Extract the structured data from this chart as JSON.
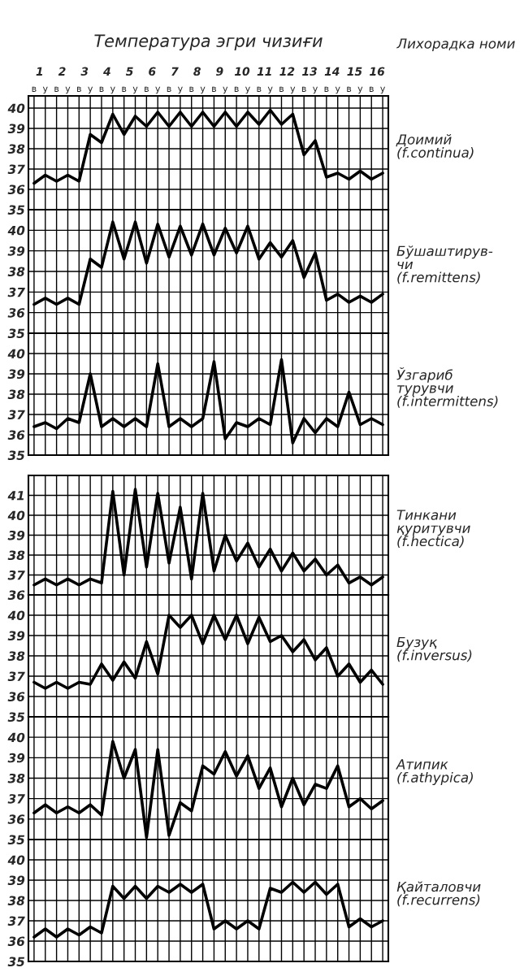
{
  "chart_data": [
    {
      "type": "line",
      "y2label": "Доимий\n(f.continua)",
      "annotations": [
        "Температура эгри чизиғи",
        "Лихорадка номи"
      ],
      "categories": [
        "в",
        "у",
        "в",
        "у",
        "в",
        "у",
        "в",
        "у",
        "в",
        "у",
        "в",
        "у",
        "в",
        "у",
        "в",
        "у",
        "в",
        "у",
        "в",
        "у",
        "в",
        "у",
        "в",
        "у",
        "в",
        "у",
        "в",
        "у",
        "в",
        "у",
        "в",
        "у"
      ],
      "x2lim": [
        0,
        16
      ],
      "x2ticks": [
        {
          "value": 0.5,
          "label": "1"
        },
        {
          "value": 1.5,
          "label": "2"
        },
        {
          "value": 2.5,
          "label": "3"
        },
        {
          "value": 3.5,
          "label": "4"
        },
        {
          "value": 4.5,
          "label": "5"
        },
        {
          "value": 5.5,
          "label": "6"
        },
        {
          "value": 6.5,
          "label": "7"
        },
        {
          "value": 7.5,
          "label": "8"
        },
        {
          "value": 8.5,
          "label": "9"
        },
        {
          "value": 9.5,
          "label": "10"
        },
        {
          "value": 10.5,
          "label": "11"
        },
        {
          "value": 11.5,
          "label": "12"
        },
        {
          "value": 12.5,
          "label": "13"
        },
        {
          "value": 13.5,
          "label": "14"
        },
        {
          "value": 14.5,
          "label": "15"
        },
        {
          "value": 15.5,
          "label": "16"
        }
      ],
      "series": [
        {
          "color": "#000000",
          "values": [
            36.3,
            36.7,
            36.4,
            36.7,
            36.4,
            38.7,
            38.3,
            39.7,
            38.7,
            39.6,
            39.1,
            39.8,
            39.1,
            39.8,
            39.1,
            39.8,
            39.1,
            39.8,
            39.1,
            39.8,
            39.2,
            39.9,
            39.2,
            39.7,
            37.7,
            38.4,
            36.6,
            36.8,
            36.5,
            36.9,
            36.5,
            36.8
          ]
        }
      ],
      "ylim": [
        35,
        40.6
      ],
      "yticks": [
        35,
        36,
        37,
        38,
        39,
        40
      ],
      "grid": true,
      "marker": "none",
      "line_style": "solid"
    },
    {
      "type": "line",
      "y2label": "Бўшаштирув-\nчи\n(f.remittens)",
      "categories": [
        null,
        null,
        null,
        null,
        null,
        null,
        null,
        null,
        null,
        null,
        null,
        null,
        null,
        null,
        null,
        null,
        null,
        null,
        null,
        null,
        null,
        null,
        null,
        null,
        null,
        null,
        null,
        null,
        null,
        null,
        null,
        null
      ],
      "series": [
        {
          "color": "#000000",
          "values": [
            36.4,
            36.7,
            36.4,
            36.7,
            36.4,
            38.6,
            38.2,
            40.4,
            38.6,
            40.4,
            38.4,
            40.3,
            38.7,
            40.2,
            38.8,
            40.3,
            38.8,
            40.1,
            38.9,
            40.2,
            38.6,
            39.4,
            38.7,
            39.5,
            37.7,
            38.9,
            36.6,
            36.9,
            36.5,
            36.8,
            36.5,
            36.9
          ]
        }
      ],
      "ylim": [
        35,
        41
      ],
      "yticks": [
        35,
        36,
        37,
        38,
        39,
        40
      ],
      "grid": true,
      "marker": "none",
      "line_style": "solid",
      "tick_labels": "y"
    },
    {
      "type": "line",
      "y2label": "Ўзгариб\nтурувчи\n(f.intermittens)",
      "categories": [
        null,
        null,
        null,
        null,
        null,
        null,
        null,
        null,
        null,
        null,
        null,
        null,
        null,
        null,
        null,
        null,
        null,
        null,
        null,
        null,
        null,
        null,
        null,
        null,
        null,
        null,
        null,
        null,
        null,
        null,
        null,
        null
      ],
      "series": [
        {
          "color": "#000000",
          "values": [
            36.4,
            36.6,
            36.3,
            36.8,
            36.6,
            39.0,
            36.4,
            36.8,
            36.4,
            36.8,
            36.4,
            39.5,
            36.4,
            36.8,
            36.4,
            36.8,
            39.6,
            35.8,
            36.6,
            36.4,
            36.8,
            36.5,
            39.7,
            35.6,
            36.8,
            36.1,
            36.8,
            36.4,
            38.1,
            36.5,
            36.8,
            36.5
          ]
        }
      ],
      "ylim": [
        35,
        41
      ],
      "yticks": [
        35,
        36,
        37,
        38,
        39,
        40
      ],
      "grid": true,
      "marker": "none",
      "line_style": "solid",
      "tick_labels": "y"
    },
    {
      "type": "line",
      "y2label": "Тинкани\nқуритувчи\n(f.hectica)",
      "categories": [
        null,
        null,
        null,
        null,
        null,
        null,
        null,
        null,
        null,
        null,
        null,
        null,
        null,
        null,
        null,
        null,
        null,
        null,
        null,
        null,
        null,
        null,
        null,
        null,
        null,
        null,
        null,
        null,
        null,
        null,
        null,
        null
      ],
      "series": [
        {
          "color": "#000000",
          "values": [
            36.5,
            36.8,
            36.5,
            36.8,
            36.5,
            36.8,
            36.6,
            41.2,
            37.0,
            41.3,
            37.4,
            41.1,
            37.6,
            40.4,
            36.8,
            41.1,
            37.2,
            39.0,
            37.7,
            38.6,
            37.4,
            38.3,
            37.2,
            38.1,
            37.2,
            37.8,
            37.0,
            37.5,
            36.6,
            36.9,
            36.5,
            36.9
          ]
        }
      ],
      "ylim": [
        36,
        42
      ],
      "yticks": [
        36,
        37,
        38,
        39,
        40,
        41
      ],
      "grid": true,
      "marker": "none",
      "line_style": "solid",
      "tick_labels": "y"
    },
    {
      "type": "line",
      "y2label": "Бузуқ\n(f.inversus)",
      "categories": [
        null,
        null,
        null,
        null,
        null,
        null,
        null,
        null,
        null,
        null,
        null,
        null,
        null,
        null,
        null,
        null,
        null,
        null,
        null,
        null,
        null,
        null,
        null,
        null,
        null,
        null,
        null,
        null,
        null,
        null,
        null,
        null
      ],
      "series": [
        {
          "color": "#000000",
          "values": [
            36.7,
            36.4,
            36.7,
            36.4,
            36.7,
            36.6,
            37.6,
            36.8,
            37.7,
            36.9,
            38.7,
            37.1,
            40.0,
            39.4,
            40.0,
            38.6,
            40.0,
            38.8,
            40.0,
            38.6,
            39.9,
            38.7,
            39.0,
            38.2,
            38.8,
            37.8,
            38.4,
            37.0,
            37.6,
            36.7,
            37.3,
            36.6
          ]
        }
      ],
      "ylim": [
        35,
        41
      ],
      "yticks": [
        35,
        36,
        37,
        38,
        39,
        40
      ],
      "grid": true,
      "marker": "none",
      "line_style": "solid",
      "tick_labels": "y"
    },
    {
      "type": "line",
      "y2label": "Атипик\n(f.athypica)",
      "categories": [
        null,
        null,
        null,
        null,
        null,
        null,
        null,
        null,
        null,
        null,
        null,
        null,
        null,
        null,
        null,
        null,
        null,
        null,
        null,
        null,
        null,
        null,
        null,
        null,
        null,
        null,
        null,
        null,
        null,
        null,
        null,
        null
      ],
      "series": [
        {
          "color": "#000000",
          "values": [
            36.3,
            36.7,
            36.3,
            36.6,
            36.3,
            36.7,
            36.2,
            39.8,
            38.0,
            39.4,
            35.1,
            39.4,
            35.2,
            36.8,
            36.4,
            38.6,
            38.2,
            39.3,
            38.1,
            39.1,
            37.5,
            38.5,
            36.6,
            38.0,
            36.7,
            37.7,
            37.5,
            38.6,
            36.6,
            37.0,
            36.5,
            36.9
          ]
        }
      ],
      "ylim": [
        35,
        41
      ],
      "yticks": [
        35,
        36,
        37,
        38,
        39,
        40
      ],
      "grid": true,
      "marker": "none",
      "line_style": "solid",
      "tick_labels": "y"
    },
    {
      "type": "line",
      "y2label": "Қайталовчи\n(f.recurrens)",
      "categories": [
        null,
        null,
        null,
        null,
        null,
        null,
        null,
        null,
        null,
        null,
        null,
        null,
        null,
        null,
        null,
        null,
        null,
        null,
        null,
        null,
        null,
        null,
        null,
        null,
        null,
        null,
        null,
        null,
        null,
        null,
        null,
        null
      ],
      "series": [
        {
          "color": "#000000",
          "values": [
            36.2,
            36.6,
            36.2,
            36.6,
            36.3,
            36.7,
            36.4,
            38.7,
            38.1,
            38.7,
            38.1,
            38.7,
            38.4,
            38.8,
            38.4,
            38.8,
            36.6,
            37.0,
            36.6,
            37.0,
            36.6,
            38.6,
            38.4,
            38.9,
            38.4,
            38.9,
            38.3,
            38.8,
            36.7,
            37.1,
            36.7,
            37.0
          ]
        }
      ],
      "ylim": [
        35,
        41
      ],
      "yticks": [
        35,
        36,
        37,
        38,
        39,
        40
      ],
      "grid": true,
      "marker": "none",
      "line_style": "solid",
      "tick_labels": "y"
    }
  ]
}
